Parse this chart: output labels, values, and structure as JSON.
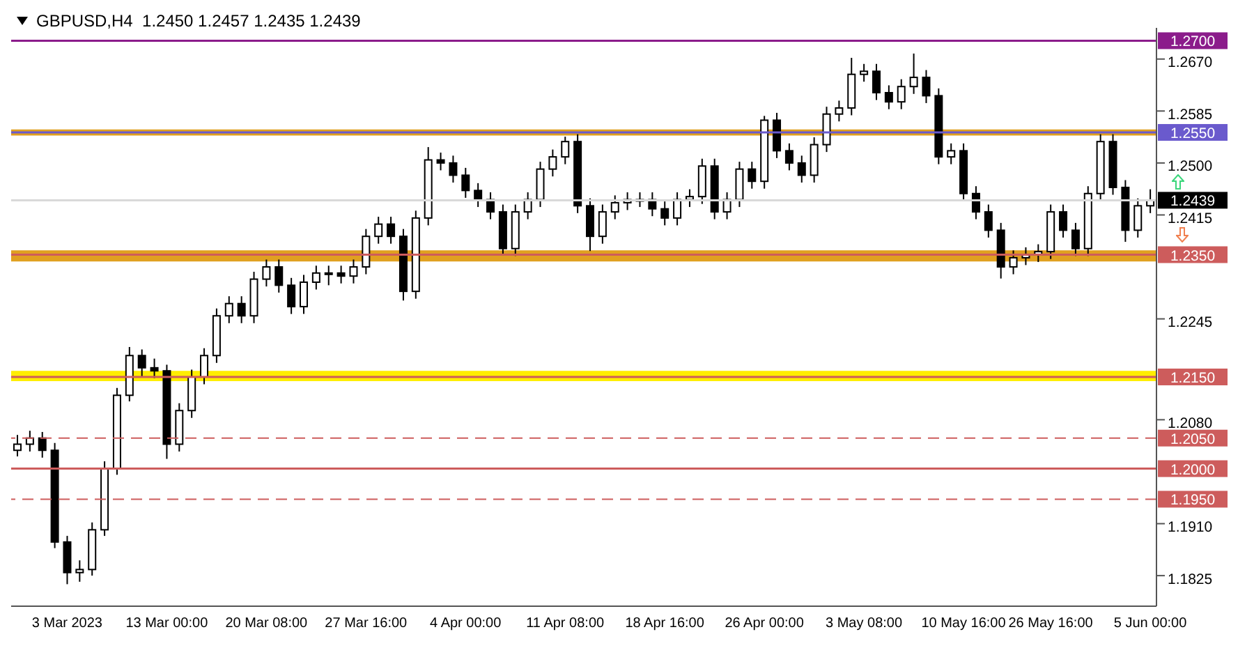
{
  "chart_data": {
    "type": "candlestick",
    "title": "GBPUSD,H4  1.2450 1.2457 1.2435 1.2439",
    "color": "#000000",
    "categories": [
      null,
      null,
      null,
      null,
      "3 Mar 2023",
      null,
      null,
      null,
      null,
      null,
      null,
      null,
      "13 Mar 00:00",
      null,
      null,
      null,
      null,
      null,
      null,
      null,
      "20 Mar 08:00",
      null,
      null,
      null,
      null,
      null,
      null,
      null,
      "27 Mar 16:00",
      null,
      null,
      null,
      null,
      null,
      null,
      null,
      "4 Apr 00:00",
      null,
      null,
      null,
      null,
      null,
      null,
      null,
      "11 Apr 08:00",
      null,
      null,
      null,
      null,
      null,
      null,
      null,
      "18 Apr 16:00",
      null,
      null,
      null,
      null,
      null,
      null,
      null,
      "26 Apr 00:00",
      null,
      null,
      null,
      null,
      null,
      null,
      null,
      "3 May 08:00",
      null,
      null,
      null,
      null,
      null,
      null,
      null,
      "10 May 16:00",
      null,
      null,
      null,
      null,
      null,
      null,
      "26 May 16:00",
      null,
      null,
      null,
      null,
      null,
      null,
      null,
      "5 Jun 00:00"
    ],
    "ohlc": [
      [
        1.203,
        1.2055,
        1.202,
        1.204
      ],
      [
        1.204,
        1.2062,
        1.2028,
        1.205
      ],
      [
        1.205,
        1.206,
        1.2018,
        1.203
      ],
      [
        1.203,
        1.2042,
        1.187,
        1.188
      ],
      [
        1.188,
        1.189,
        1.1811,
        1.183
      ],
      [
        1.183,
        1.185,
        1.1815,
        1.1835
      ],
      [
        1.1835,
        1.1912,
        1.1825,
        1.19
      ],
      [
        1.19,
        1.2012,
        1.189,
        1.2
      ],
      [
        1.2,
        1.2132,
        1.199,
        1.212
      ],
      [
        1.212,
        1.2199,
        1.211,
        1.2185
      ],
      [
        1.2185,
        1.2195,
        1.215,
        1.2165
      ],
      [
        1.2165,
        1.218,
        1.2148,
        1.216
      ],
      [
        1.216,
        1.217,
        1.2016,
        1.204
      ],
      [
        1.204,
        1.2107,
        1.2028,
        1.2095
      ],
      [
        1.2095,
        1.2162,
        1.2083,
        1.215
      ],
      [
        1.215,
        1.2197,
        1.2138,
        1.2185
      ],
      [
        1.2185,
        1.2262,
        1.2173,
        1.225
      ],
      [
        1.225,
        1.2282,
        1.2238,
        1.227
      ],
      [
        1.227,
        1.2282,
        1.2238,
        1.225
      ],
      [
        1.225,
        1.2322,
        1.2238,
        1.231
      ],
      [
        1.231,
        1.2342,
        1.2298,
        1.233
      ],
      [
        1.233,
        1.2342,
        1.2288,
        1.23
      ],
      [
        1.23,
        1.2312,
        1.2253,
        1.2265
      ],
      [
        1.2265,
        1.2317,
        1.2253,
        1.2305
      ],
      [
        1.2305,
        1.2332,
        1.2293,
        1.232
      ],
      [
        1.232,
        1.2332,
        1.23,
        1.232
      ],
      [
        1.232,
        1.2332,
        1.2303,
        1.2315
      ],
      [
        1.2315,
        1.2342,
        1.2303,
        1.233
      ],
      [
        1.233,
        1.2392,
        1.2318,
        1.238
      ],
      [
        1.238,
        1.2412,
        1.2368,
        1.24
      ],
      [
        1.24,
        1.2412,
        1.2368,
        1.238
      ],
      [
        1.238,
        1.2392,
        1.2275,
        1.229
      ],
      [
        1.229,
        1.2422,
        1.2278,
        1.241
      ],
      [
        1.241,
        1.2526,
        1.2398,
        1.2505
      ],
      [
        1.2505,
        1.2517,
        1.2488,
        1.25
      ],
      [
        1.25,
        1.2512,
        1.2468,
        1.248
      ],
      [
        1.248,
        1.2492,
        1.2443,
        1.2455
      ],
      [
        1.2455,
        1.2467,
        1.2428,
        1.244
      ],
      [
        1.244,
        1.2452,
        1.2408,
        1.242
      ],
      [
        1.242,
        1.2432,
        1.2349,
        1.236
      ],
      [
        1.236,
        1.2432,
        1.2348,
        1.242
      ],
      [
        1.242,
        1.2452,
        1.2408,
        1.244
      ],
      [
        1.244,
        1.2502,
        1.2428,
        1.249
      ],
      [
        1.249,
        1.2522,
        1.2478,
        1.251
      ],
      [
        1.251,
        1.2543,
        1.2498,
        1.2535
      ],
      [
        1.2535,
        1.2547,
        1.2418,
        1.243
      ],
      [
        1.243,
        1.2442,
        1.2356,
        1.238
      ],
      [
        1.238,
        1.2432,
        1.2368,
        1.242
      ],
      [
        1.242,
        1.2447,
        1.2408,
        1.2435
      ],
      [
        1.2435,
        1.2452,
        1.2423,
        1.244
      ],
      [
        1.244,
        1.2452,
        1.2428,
        1.244
      ],
      [
        1.244,
        1.2452,
        1.2413,
        1.2425
      ],
      [
        1.2425,
        1.2437,
        1.2398,
        1.241
      ],
      [
        1.241,
        1.2452,
        1.2398,
        1.244
      ],
      [
        1.244,
        1.2457,
        1.2428,
        1.2445
      ],
      [
        1.2445,
        1.2507,
        1.2433,
        1.2495
      ],
      [
        1.2495,
        1.2507,
        1.2408,
        1.242
      ],
      [
        1.242,
        1.2452,
        1.2408,
        1.244
      ],
      [
        1.244,
        1.2502,
        1.2428,
        1.249
      ],
      [
        1.249,
        1.2502,
        1.2458,
        1.247
      ],
      [
        1.247,
        1.2577,
        1.2458,
        1.257
      ],
      [
        1.257,
        1.2582,
        1.2508,
        1.252
      ],
      [
        1.252,
        1.2532,
        1.2488,
        1.25
      ],
      [
        1.25,
        1.2512,
        1.2468,
        1.248
      ],
      [
        1.248,
        1.2542,
        1.2468,
        1.253
      ],
      [
        1.253,
        1.2592,
        1.2518,
        1.258
      ],
      [
        1.258,
        1.2602,
        1.2568,
        1.259
      ],
      [
        1.259,
        1.2672,
        1.2578,
        1.2645
      ],
      [
        1.2645,
        1.2662,
        1.2633,
        1.265
      ],
      [
        1.265,
        1.2662,
        1.2603,
        1.2615
      ],
      [
        1.2615,
        1.2627,
        1.2588,
        1.26
      ],
      [
        1.26,
        1.2637,
        1.2588,
        1.2625
      ],
      [
        1.2625,
        1.2679,
        1.2613,
        1.264
      ],
      [
        1.264,
        1.2652,
        1.2598,
        1.261
      ],
      [
        1.261,
        1.2622,
        1.2498,
        1.251
      ],
      [
        1.251,
        1.2532,
        1.2498,
        1.252
      ],
      [
        1.252,
        1.2532,
        1.2438,
        1.245
      ],
      [
        1.245,
        1.2462,
        1.2408,
        1.242
      ],
      [
        1.242,
        1.2432,
        1.2378,
        1.239
      ],
      [
        1.239,
        1.2402,
        1.2311,
        1.233
      ],
      [
        1.233,
        1.2357,
        1.2318,
        1.2345
      ],
      [
        1.2345,
        1.2362,
        1.2333,
        1.235
      ],
      [
        1.235,
        1.2367,
        1.2338,
        1.2355
      ],
      [
        1.2355,
        1.2432,
        1.2343,
        1.242
      ],
      [
        1.242,
        1.2432,
        1.2378,
        1.239
      ],
      [
        1.239,
        1.2402,
        1.2348,
        1.236
      ],
      [
        1.236,
        1.2462,
        1.2348,
        1.245
      ],
      [
        1.245,
        1.2547,
        1.2438,
        1.2535
      ],
      [
        1.2535,
        1.2547,
        1.2448,
        1.246
      ],
      [
        1.246,
        1.2472,
        1.2371,
        1.239
      ],
      [
        1.239,
        1.2442,
        1.2378,
        1.243
      ],
      [
        1.243,
        1.2457,
        1.2418,
        1.2439
      ]
    ],
    "ylim": [
      1.1775,
      1.2721
    ],
    "yticks": [
      {
        "value": 1.267,
        "label": "1.2670"
      },
      {
        "value": 1.2585,
        "label": "1.2585"
      },
      {
        "value": 1.25,
        "label": "1.2500"
      },
      {
        "value": 1.2415,
        "label": "1.2415"
      },
      {
        "value": 1.2245,
        "label": "1.2245"
      },
      {
        "value": 1.208,
        "label": "1.2080"
      },
      {
        "value": 1.191,
        "label": "1.1910"
      },
      {
        "value": 1.1825,
        "label": "1.1825"
      }
    ],
    "ref_lines": [
      {
        "axis": "y",
        "value": 1.27,
        "label": "1.2700",
        "color": "#8b1c8b",
        "line_style": "solid"
      },
      {
        "axis": "y",
        "value": 1.255,
        "label": "1.2550",
        "color": "#6a5acd",
        "line_style": "solid"
      },
      {
        "axis": "y",
        "value": 1.2439,
        "label": "1.2439",
        "color": "#d9d9d9",
        "line_style": "solid"
      },
      {
        "axis": "y",
        "value": 1.235,
        "label": "1.2350",
        "color": "#cd5c5c",
        "line_style": "solid"
      },
      {
        "axis": "y",
        "value": 1.215,
        "label": "1.2150",
        "color": "#cd5c5c",
        "line_style": "solid"
      },
      {
        "axis": "y",
        "value": 1.205,
        "label": "1.2050",
        "color": "#cd5c5c",
        "line_style": "dashed"
      },
      {
        "axis": "y",
        "value": 1.2,
        "label": "1.2000",
        "color": "#cd5c5c",
        "line_style": "solid"
      },
      {
        "axis": "y",
        "value": 1.195,
        "label": "1.1950",
        "color": "#cd5c5c",
        "line_style": "dashed"
      }
    ],
    "bands": [
      {
        "axis": "y",
        "from": 1.2545,
        "to": 1.2555,
        "color": "#e0a020"
      },
      {
        "axis": "y",
        "from": 1.2339,
        "to": 1.2357,
        "color": "#e0a020"
      },
      {
        "axis": "y",
        "from": 1.2143,
        "to": 1.216,
        "color": "#ffee00"
      }
    ],
    "grid": false,
    "legend": false
  }
}
